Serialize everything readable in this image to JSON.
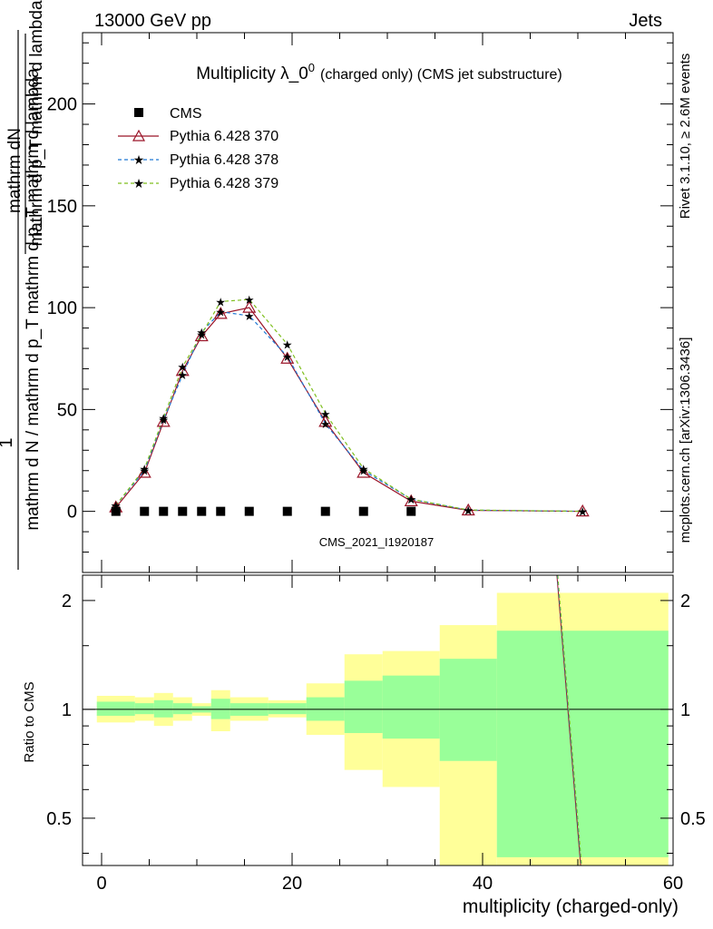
{
  "header": {
    "energy_label": "13000 GeV pp",
    "process_label": "Jets"
  },
  "side_labels": {
    "rivet_version": "Rivet 3.1.10, ≥ 2.6M events",
    "mcplots_ref": "mcplots.cern.ch [arXiv:1306.3436]"
  },
  "chart_data": [
    {
      "type": "line",
      "panel": "main",
      "title": "Multiplicity λ_0",
      "title_sup": "0",
      "title_note": "(charged only) (CMS jet substructure)",
      "ylabel_num": "mathrm dN",
      "ylabel_denom": "mathrm d p_T mathrm d lambda",
      "ylabel_prefix_num": "1",
      "ylabel_prefix_denom": "mathrm d N / mathrm d p_T mathrm d p_T mathrm d lambda",
      "watermark": "CMS_2021_I1920187",
      "xlim": [
        -2,
        60
      ],
      "ylim": [
        -30,
        235
      ],
      "yticks": [
        0,
        50,
        100,
        150,
        200
      ],
      "ytick_labels": [
        "0",
        "50",
        "100",
        "150",
        "200"
      ],
      "legend_position": "top-left",
      "series": [
        {
          "name": "CMS",
          "style": "data",
          "color": "#000000",
          "x": [
            1.5,
            4.5,
            6.5,
            8.5,
            10.5,
            12.5,
            15.5,
            19.5,
            23.5,
            27.5,
            32.5
          ],
          "values": [
            0,
            0,
            0,
            0,
            0,
            0,
            0,
            0,
            0,
            0,
            0
          ]
        },
        {
          "name": "Pythia 6.428 370",
          "style": "solid-triangle",
          "color": "#9a1428",
          "x": [
            1.5,
            4.5,
            6.5,
            8.5,
            10.5,
            12.5,
            15.5,
            19.5,
            23.5,
            27.5,
            32.5,
            38.5,
            50.5
          ],
          "values": [
            2,
            19,
            44,
            69,
            86,
            97,
            100,
            75,
            44,
            19,
            5,
            0.5,
            0
          ]
        },
        {
          "name": "Pythia 6.428 378",
          "style": "dashed-star",
          "color": "#1f78d4",
          "x": [
            1.5,
            4.5,
            6.5,
            8.5,
            10.5,
            12.5,
            15.5,
            19.5,
            23.5,
            27.5,
            32.5,
            38.5,
            50.5
          ],
          "values": [
            3,
            20,
            45,
            67,
            88,
            98,
            96,
            76,
            43,
            20,
            6,
            0.6,
            0
          ]
        },
        {
          "name": "Pythia 6.428 379",
          "style": "dashed-star",
          "color": "#7fbf1f",
          "x": [
            1.5,
            4.5,
            6.5,
            8.5,
            10.5,
            12.5,
            15.5,
            19.5,
            23.5,
            27.5,
            32.5,
            38.5,
            50.5
          ],
          "values": [
            3,
            21,
            46,
            71,
            87,
            103,
            104,
            82,
            48,
            21,
            6,
            0.7,
            0
          ]
        }
      ]
    },
    {
      "type": "line",
      "panel": "ratio",
      "ylabel": "Ratio to CMS",
      "xlabel": "multiplicity (charged-only)",
      "xlim": [
        -2,
        60
      ],
      "ylim": [
        0.37,
        2.35
      ],
      "log_y": true,
      "xticks": [
        0,
        20,
        40,
        60
      ],
      "xtick_labels": [
        "0",
        "20",
        "40",
        "60"
      ],
      "yticks": [
        0.5,
        1,
        2
      ],
      "ytick_labels": [
        "0.5",
        "1",
        "2"
      ],
      "bins": [
        {
          "x_lo": -0.5,
          "x_hi": 3.5,
          "inner": [
            0.96,
            1.05
          ],
          "outer": [
            0.92,
            1.09
          ]
        },
        {
          "x_lo": 3.5,
          "x_hi": 5.5,
          "inner": [
            0.97,
            1.04
          ],
          "outer": [
            0.93,
            1.08
          ]
        },
        {
          "x_lo": 5.5,
          "x_hi": 7.5,
          "inner": [
            0.95,
            1.06
          ],
          "outer": [
            0.9,
            1.11
          ]
        },
        {
          "x_lo": 7.5,
          "x_hi": 9.5,
          "inner": [
            0.97,
            1.04
          ],
          "outer": [
            0.93,
            1.08
          ]
        },
        {
          "x_lo": 9.5,
          "x_hi": 11.5,
          "inner": [
            0.98,
            1.02
          ],
          "outer": [
            0.96,
            1.04
          ]
        },
        {
          "x_lo": 11.5,
          "x_hi": 13.5,
          "inner": [
            0.94,
            1.07
          ],
          "outer": [
            0.87,
            1.13
          ]
        },
        {
          "x_lo": 13.5,
          "x_hi": 17.5,
          "inner": [
            0.96,
            1.04
          ],
          "outer": [
            0.93,
            1.08
          ]
        },
        {
          "x_lo": 17.5,
          "x_hi": 21.5,
          "inner": [
            0.97,
            1.04
          ],
          "outer": [
            0.95,
            1.06
          ]
        },
        {
          "x_lo": 21.5,
          "x_hi": 25.5,
          "inner": [
            0.93,
            1.08
          ],
          "outer": [
            0.85,
            1.18
          ]
        },
        {
          "x_lo": 25.5,
          "x_hi": 29.5,
          "inner": [
            0.86,
            1.2
          ],
          "outer": [
            0.68,
            1.42
          ]
        },
        {
          "x_lo": 29.5,
          "x_hi": 35.5,
          "inner": [
            0.83,
            1.24
          ],
          "outer": [
            0.61,
            1.45
          ]
        },
        {
          "x_lo": 35.5,
          "x_hi": 41.5,
          "inner": [
            0.72,
            1.38
          ],
          "outer": [
            0.36,
            1.71
          ]
        },
        {
          "x_lo": 41.5,
          "x_hi": 59.5,
          "inner": [
            0.39,
            1.65
          ],
          "outer": [
            0.36,
            2.1
          ]
        }
      ],
      "series": [
        {
          "name": "Pythia 6.428 370",
          "color": "#9a1428",
          "x": [
            47.8,
            50.3
          ],
          "values": [
            2.4,
            0.37
          ]
        },
        {
          "name": "Pythia 6.428 378",
          "color": "#1f78d4",
          "x": [
            47.85,
            50.35
          ],
          "values": [
            2.4,
            0.37
          ]
        },
        {
          "name": "Pythia 6.428 379",
          "color": "#7fbf1f",
          "x": [
            47.9,
            50.4
          ],
          "values": [
            2.4,
            0.37
          ]
        }
      ],
      "band_colors": {
        "inner": "#99ff99",
        "outer": "#ffff99"
      }
    }
  ]
}
